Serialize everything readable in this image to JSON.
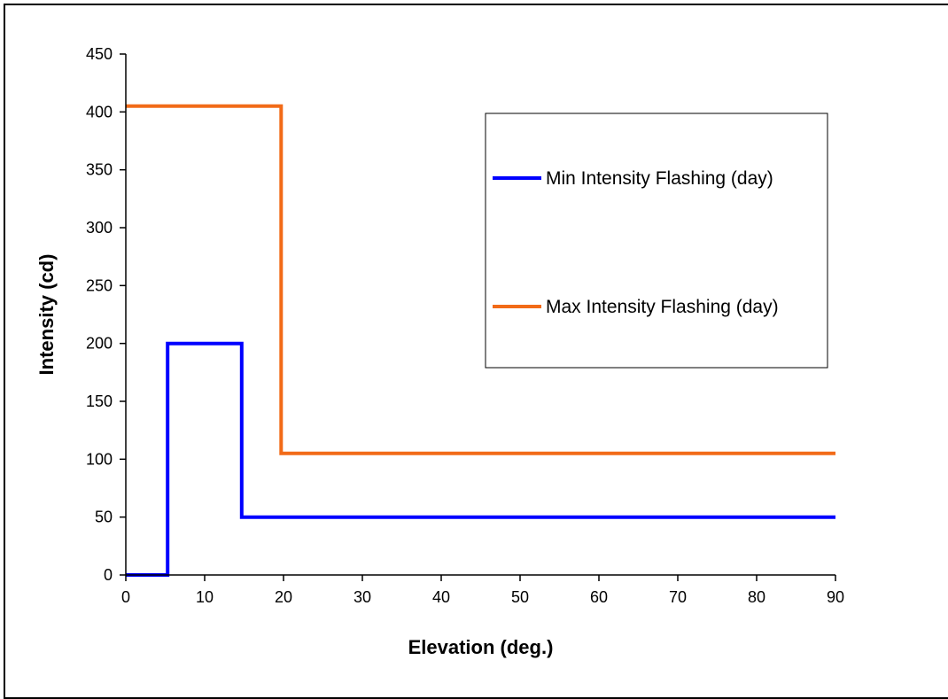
{
  "chart_data": {
    "type": "line",
    "title": "",
    "xlabel": "Elevation  (deg.)",
    "ylabel": "Intensity (cd)",
    "xlim": [
      0,
      90
    ],
    "ylim": [
      0,
      450
    ],
    "x_ticks": [
      "0",
      "10",
      "20",
      "30",
      "40",
      "50",
      "60",
      "70",
      "80",
      "90"
    ],
    "y_ticks": [
      "0",
      "50",
      "100",
      "150",
      "200",
      "250",
      "300",
      "350",
      "400",
      "450"
    ],
    "grid": false,
    "legend_position": "top-right",
    "series": [
      {
        "name": "Min Intensity Flashing (day)",
        "color": "#0000ff",
        "points": [
          [
            0,
            0
          ],
          [
            5.3,
            0
          ],
          [
            5.3,
            200
          ],
          [
            14.7,
            200
          ],
          [
            14.7,
            50
          ],
          [
            90,
            50
          ]
        ]
      },
      {
        "name": "Max Intensity Flashing (day)",
        "color": "#f26b18",
        "points": [
          [
            0,
            405
          ],
          [
            19.7,
            405
          ],
          [
            19.7,
            105
          ],
          [
            90,
            105
          ]
        ]
      }
    ]
  }
}
